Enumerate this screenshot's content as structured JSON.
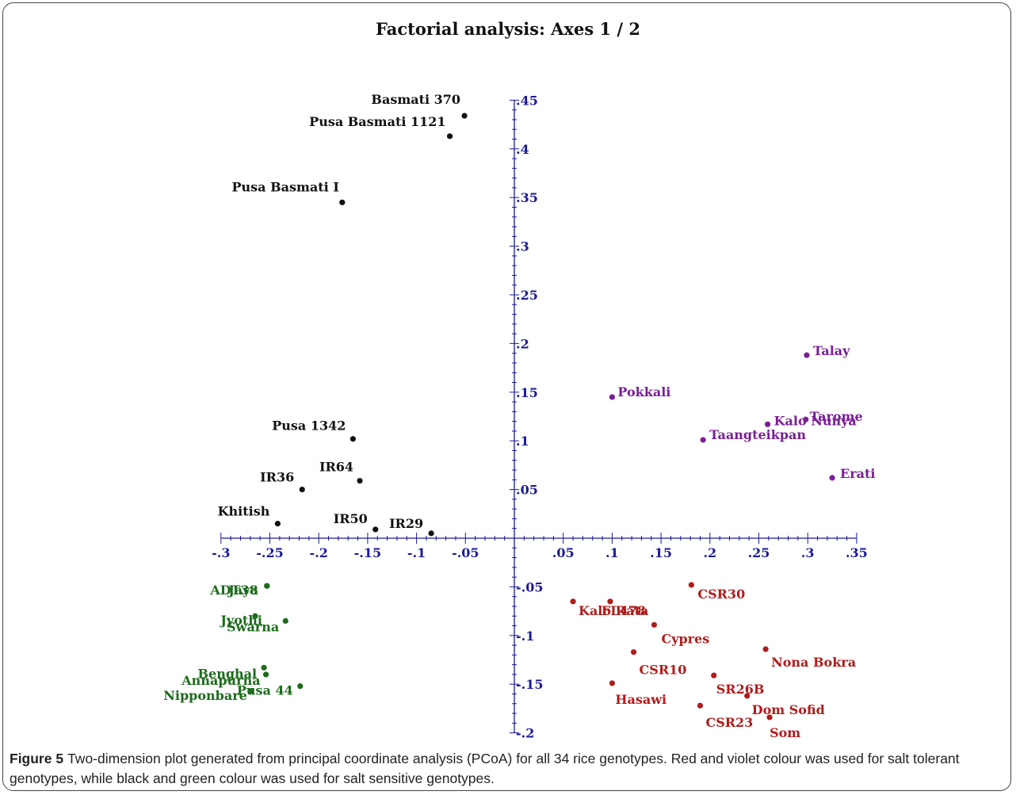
{
  "chart_data": {
    "type": "scatter",
    "title": "Factorial analysis: Axes 1 / 2",
    "xlabel": "",
    "ylabel": "",
    "xlim": [
      -0.3,
      0.35
    ],
    "ylim": [
      -0.2,
      0.45
    ],
    "grid": false,
    "x_ticks": [
      {
        "value": -0.3,
        "label": "-.3"
      },
      {
        "value": -0.25,
        "label": "-.25"
      },
      {
        "value": -0.2,
        "label": "-.2"
      },
      {
        "value": -0.15,
        "label": "-.15"
      },
      {
        "value": -0.1,
        "label": "-.1"
      },
      {
        "value": -0.05,
        "label": "-.05"
      },
      {
        "value": 0.05,
        "label": ".05"
      },
      {
        "value": 0.1,
        "label": ".1"
      },
      {
        "value": 0.15,
        "label": ".15"
      },
      {
        "value": 0.2,
        "label": ".2"
      },
      {
        "value": 0.25,
        "label": ".25"
      },
      {
        "value": 0.3,
        "label": ".3"
      },
      {
        "value": 0.35,
        "label": ".35"
      }
    ],
    "y_ticks": [
      {
        "value": 0.45,
        "label": ".45"
      },
      {
        "value": 0.4,
        "label": ".4"
      },
      {
        "value": 0.35,
        "label": ".35"
      },
      {
        "value": 0.3,
        "label": ".3"
      },
      {
        "value": 0.25,
        "label": ".25"
      },
      {
        "value": 0.2,
        "label": ".2"
      },
      {
        "value": 0.15,
        "label": ".15"
      },
      {
        "value": 0.1,
        "label": ".1"
      },
      {
        "value": 0.05,
        "label": ".05"
      },
      {
        "value": -0.05,
        "label": "-.05"
      },
      {
        "value": -0.1,
        "label": "-.1"
      },
      {
        "value": -0.15,
        "label": "-.15"
      },
      {
        "value": -0.2,
        "label": "-.2"
      }
    ],
    "series": [
      {
        "color": "#111111",
        "points": [
          {
            "label": "Basmati 370",
            "x": -0.051,
            "y": 0.434,
            "anchor": "end",
            "dx": -5,
            "dy": -15
          },
          {
            "label": "Pusa Basmati 1121",
            "x": -0.066,
            "y": 0.413,
            "anchor": "end",
            "dx": -5,
            "dy": -13
          },
          {
            "label": "Pusa Basmati I",
            "x": -0.176,
            "y": 0.345,
            "anchor": "end",
            "dx": -4,
            "dy": -14
          },
          {
            "label": "Pusa 1342",
            "x": -0.165,
            "y": 0.102,
            "anchor": "end",
            "dx": -9,
            "dy": -11
          },
          {
            "label": "IR64",
            "x": -0.158,
            "y": 0.059,
            "anchor": "end",
            "dx": -8,
            "dy": -12
          },
          {
            "label": "IR36",
            "x": -0.217,
            "y": 0.05,
            "anchor": "end",
            "dx": -10,
            "dy": -10
          },
          {
            "label": "Khitish",
            "x": -0.242,
            "y": 0.015,
            "anchor": "end",
            "dx": -10,
            "dy": -10
          },
          {
            "label": "IR50",
            "x": -0.142,
            "y": 0.009,
            "anchor": "end",
            "dx": -10,
            "dy": -8
          },
          {
            "label": "IR29",
            "x": -0.085,
            "y": 0.005,
            "anchor": "end",
            "dx": -10,
            "dy": -7
          }
        ]
      },
      {
        "color": "#1d6b1d",
        "points": [
          {
            "label": "ADT38",
            "x": -0.253,
            "y": -0.049,
            "anchor": "end",
            "dx": -11,
            "dy": 11
          },
          {
            "label": "Jaya",
            "x": -0.253,
            "y": -0.049,
            "anchor": "end",
            "dx": -11,
            "dy": 11
          },
          {
            "label": "Jyothi",
            "x": -0.265,
            "y": -0.08,
            "anchor": "end",
            "dx": 9,
            "dy": 11
          },
          {
            "label": "Swarna",
            "x": -0.234,
            "y": -0.085,
            "anchor": "end",
            "dx": -8,
            "dy": 13
          },
          {
            "label": "Benghal",
            "x": -0.256,
            "y": -0.133,
            "anchor": "end",
            "dx": -9,
            "dy": 13
          },
          {
            "label": "Annapurna",
            "x": -0.254,
            "y": -0.14,
            "anchor": "end",
            "dx": -7,
            "dy": 13
          },
          {
            "label": "Nipponbare",
            "x": -0.27,
            "y": -0.157,
            "anchor": "end",
            "dx": -4,
            "dy": 11
          },
          {
            "label": "Pusa 44",
            "x": -0.219,
            "y": -0.152,
            "anchor": "end",
            "dx": -9,
            "dy": 11
          }
        ]
      },
      {
        "color": "#7a1f96",
        "points": [
          {
            "label": "Talay",
            "x": 0.299,
            "y": 0.188,
            "anchor": "start",
            "dx": 8,
            "dy": 0
          },
          {
            "label": "Pokkali",
            "x": 0.1,
            "y": 0.145,
            "anchor": "start",
            "dx": 7,
            "dy": -1
          },
          {
            "label": "Tarome",
            "x": 0.298,
            "y": 0.122,
            "anchor": "start",
            "dx": 5,
            "dy": 2
          },
          {
            "label": "Kalo Nunya",
            "x": 0.259,
            "y": 0.117,
            "anchor": "start",
            "dx": 8,
            "dy": 1
          },
          {
            "label": "Taangteikpan",
            "x": 0.193,
            "y": 0.101,
            "anchor": "start",
            "dx": 8,
            "dy": -1
          },
          {
            "label": "Erati",
            "x": 0.325,
            "y": 0.062,
            "anchor": "start",
            "dx": 10,
            "dy": 0
          }
        ]
      },
      {
        "color": "#b01c1c",
        "points": [
          {
            "label": "CSR30",
            "x": 0.181,
            "y": -0.048,
            "anchor": "start",
            "dx": 8,
            "dy": 17
          },
          {
            "label": "Kalo Rata",
            "x": 0.06,
            "y": -0.065,
            "anchor": "start",
            "dx": 7,
            "dy": 17
          },
          {
            "label": "FL478",
            "x": 0.098,
            "y": -0.065,
            "anchor": "start",
            "dx": -11,
            "dy": 17
          },
          {
            "label": "Cypres",
            "x": 0.143,
            "y": -0.089,
            "anchor": "start",
            "dx": 9,
            "dy": 23
          },
          {
            "label": "Nona Bokra",
            "x": 0.257,
            "y": -0.114,
            "anchor": "start",
            "dx": 7,
            "dy": 22
          },
          {
            "label": "CSR10",
            "x": 0.122,
            "y": -0.117,
            "anchor": "start",
            "dx": 7,
            "dy": 28
          },
          {
            "label": "SR26B",
            "x": 0.204,
            "y": -0.141,
            "anchor": "start",
            "dx": 3,
            "dy": 23
          },
          {
            "label": "Hasawi",
            "x": 0.1,
            "y": -0.149,
            "anchor": "start",
            "dx": 4,
            "dy": 26
          },
          {
            "label": "Dom Sofid",
            "x": 0.238,
            "y": -0.162,
            "anchor": "start",
            "dx": 6,
            "dy": 23
          },
          {
            "label": "CSR23",
            "x": 0.19,
            "y": -0.172,
            "anchor": "start",
            "dx": 7,
            "dy": 27
          },
          {
            "label": "Som",
            "x": 0.261,
            "y": -0.184,
            "anchor": "start",
            "dx": 0,
            "dy": 25
          }
        ]
      }
    ]
  },
  "caption": {
    "figure_label": "Figure 5",
    "text": "Two-dimension plot generated from principal coordinate analysis (PCoA) for all 34 rice genotypes. Red and violet colour was used for salt tolerant genotypes, while black and green colour was used for salt sensitive genotypes."
  }
}
